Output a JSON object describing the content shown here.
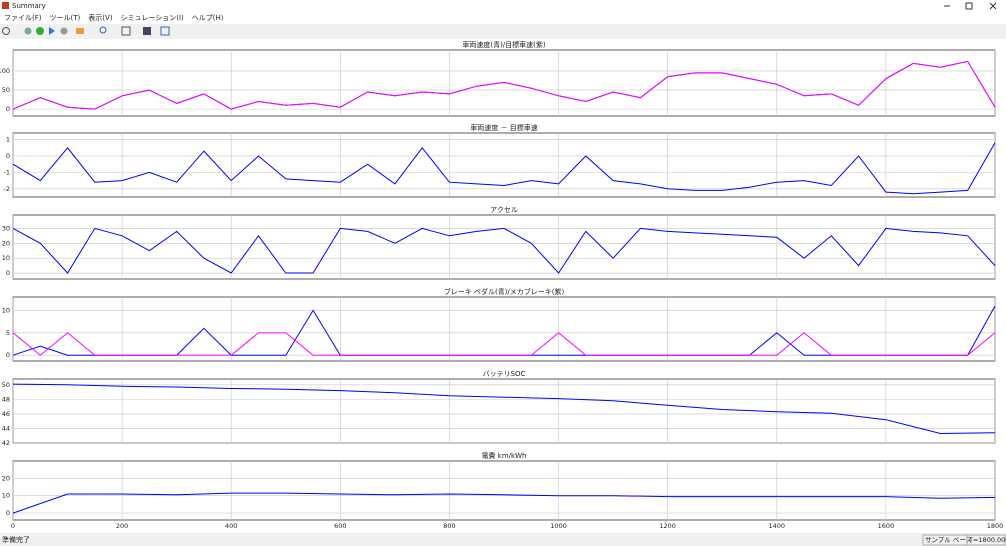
{
  "window": {
    "title": "Summary",
    "menu": [
      "ファイル(F)",
      "ツール(T)",
      "表示(V)",
      "シミュレーション(I)",
      "ヘルプ(H)"
    ],
    "status": {
      "left": "準備完了",
      "mode": "サンプル ベース",
      "time": "T=1800.000"
    }
  },
  "chart_data": [
    {
      "type": "line",
      "title": "車両速度(青)/目標車速(紫)",
      "x": [
        0,
        50,
        100,
        150,
        200,
        250,
        300,
        350,
        400,
        450,
        500,
        550,
        600,
        650,
        700,
        750,
        800,
        850,
        900,
        950,
        1000,
        1050,
        1100,
        1150,
        1200,
        1250,
        1300,
        1350,
        1400,
        1450,
        1500,
        1550,
        1600,
        1650,
        1700,
        1750,
        1800
      ],
      "series": [
        {
          "color": "#0000ff",
          "values": [
            0,
            30,
            5,
            0,
            35,
            50,
            15,
            40,
            0,
            20,
            10,
            15,
            5,
            45,
            35,
            45,
            40,
            60,
            70,
            55,
            35,
            20,
            45,
            30,
            85,
            95,
            95,
            80,
            65,
            35,
            40,
            10,
            80,
            120,
            110,
            125,
            5
          ]
        },
        {
          "color": "#ff00ff",
          "values": [
            0,
            30,
            5,
            0,
            35,
            50,
            15,
            40,
            0,
            20,
            10,
            15,
            5,
            45,
            35,
            45,
            40,
            60,
            70,
            55,
            35,
            20,
            45,
            30,
            85,
            95,
            95,
            80,
            65,
            35,
            40,
            10,
            80,
            120,
            110,
            125,
            5
          ]
        }
      ],
      "xlim": [
        0,
        1800
      ],
      "xticks": [
        0,
        200,
        400,
        600,
        800,
        1000,
        1200,
        1400,
        1600,
        1800
      ],
      "ylim": [
        -18,
        155
      ],
      "yticks": [
        0,
        50,
        100
      ],
      "grid": true
    },
    {
      "type": "line",
      "title": "車両速度 － 目標車速",
      "x": [
        0,
        50,
        100,
        150,
        200,
        250,
        300,
        350,
        400,
        450,
        500,
        550,
        600,
        650,
        700,
        750,
        800,
        850,
        900,
        950,
        1000,
        1050,
        1100,
        1150,
        1200,
        1250,
        1300,
        1350,
        1400,
        1450,
        1500,
        1550,
        1600,
        1650,
        1700,
        1750,
        1800
      ],
      "series": [
        {
          "color": "#0000ff",
          "values": [
            -0.5,
            -1.5,
            0.5,
            -1.6,
            -1.5,
            -1,
            -1.6,
            0.3,
            -1.5,
            0,
            -1.4,
            -1.5,
            -1.6,
            -0.5,
            -1.7,
            0.5,
            -1.6,
            -1.7,
            -1.8,
            -1.5,
            -1.7,
            0,
            -1.5,
            -1.7,
            -2,
            -2.1,
            -2.1,
            -1.9,
            -1.6,
            -1.5,
            -1.8,
            0,
            -2.2,
            -2.3,
            -2.2,
            -2.1,
            0.8
          ]
        }
      ],
      "xlim": [
        0,
        1800
      ],
      "xticks": [
        0,
        200,
        400,
        600,
        800,
        1000,
        1200,
        1400,
        1600,
        1800
      ],
      "ylim": [
        -2.5,
        1.4
      ],
      "yticks": [
        -2,
        -1,
        0,
        1
      ],
      "grid": true
    },
    {
      "type": "line",
      "title": "アクセル",
      "x": [
        0,
        50,
        100,
        150,
        200,
        250,
        300,
        350,
        400,
        450,
        500,
        550,
        600,
        650,
        700,
        750,
        800,
        850,
        900,
        950,
        1000,
        1050,
        1100,
        1150,
        1200,
        1250,
        1300,
        1350,
        1400,
        1450,
        1500,
        1550,
        1600,
        1650,
        1700,
        1750,
        1800
      ],
      "series": [
        {
          "color": "#0000ff",
          "values": [
            30,
            20,
            0,
            30,
            25,
            15,
            28,
            10,
            0,
            25,
            0,
            0,
            30,
            28,
            20,
            30,
            25,
            28,
            30,
            20,
            0,
            28,
            10,
            30,
            28,
            27,
            26,
            25,
            24,
            10,
            25,
            5,
            30,
            28,
            27,
            25,
            5
          ]
        }
      ],
      "xlim": [
        0,
        1800
      ],
      "xticks": [
        0,
        200,
        400,
        600,
        800,
        1000,
        1200,
        1400,
        1600,
        1800
      ],
      "ylim": [
        -4,
        39
      ],
      "yticks": [
        0,
        10,
        20,
        30
      ],
      "grid": true
    },
    {
      "type": "line",
      "title": "ブレーキ ペダル(青)/メカブレーキ(紫)",
      "x": [
        0,
        50,
        100,
        150,
        200,
        250,
        300,
        350,
        400,
        450,
        500,
        550,
        600,
        650,
        700,
        750,
        800,
        850,
        900,
        950,
        1000,
        1050,
        1100,
        1150,
        1200,
        1250,
        1300,
        1350,
        1400,
        1450,
        1500,
        1550,
        1600,
        1650,
        1700,
        1750,
        1800
      ],
      "series": [
        {
          "color": "#0000ff",
          "values": [
            0,
            2,
            0,
            0,
            0,
            0,
            0,
            6,
            0,
            0,
            0,
            10,
            0,
            0,
            0,
            0,
            0,
            0,
            0,
            0,
            0,
            0,
            0,
            0,
            0,
            0,
            0,
            0,
            5,
            0,
            0,
            0,
            0,
            0,
            0,
            0,
            11
          ]
        },
        {
          "color": "#ff00ff",
          "values": [
            5,
            0,
            5,
            0,
            0,
            0,
            0,
            0,
            0,
            5,
            5,
            0,
            0,
            0,
            0,
            0,
            0,
            0,
            0,
            0,
            5,
            0,
            0,
            0,
            0,
            0,
            0,
            0,
            0,
            5,
            0,
            0,
            0,
            0,
            0,
            0,
            5
          ]
        }
      ],
      "xlim": [
        0,
        1800
      ],
      "xticks": [
        0,
        200,
        400,
        600,
        800,
        1000,
        1200,
        1400,
        1600,
        1800
      ],
      "ylim": [
        -1.3,
        13
      ],
      "yticks": [
        0,
        5,
        10
      ],
      "grid": true
    },
    {
      "type": "line",
      "title": "バッテリSOC",
      "x": [
        0,
        100,
        200,
        300,
        400,
        500,
        600,
        700,
        800,
        900,
        1000,
        1100,
        1200,
        1300,
        1400,
        1500,
        1600,
        1700,
        1800
      ],
      "series": [
        {
          "color": "#0000ff",
          "values": [
            50.1,
            50,
            49.8,
            49.7,
            49.5,
            49.4,
            49.2,
            48.9,
            48.5,
            48.3,
            48.1,
            47.8,
            47.2,
            46.6,
            46.3,
            46.1,
            45.2,
            43.3,
            43.4
          ]
        }
      ],
      "xlim": [
        0,
        1800
      ],
      "xticks": [
        0,
        200,
        400,
        600,
        800,
        1000,
        1200,
        1400,
        1600,
        1800
      ],
      "ylim": [
        42,
        50.8
      ],
      "yticks": [
        42,
        44,
        46,
        48,
        50
      ],
      "grid": true
    },
    {
      "type": "line",
      "title": "電費  km/kWh",
      "x": [
        0,
        100,
        200,
        300,
        400,
        500,
        600,
        700,
        800,
        900,
        1000,
        1100,
        1200,
        1300,
        1400,
        1500,
        1600,
        1700,
        1800
      ],
      "series": [
        {
          "color": "#0000ff",
          "values": [
            0,
            11,
            11,
            10.5,
            11.5,
            11.5,
            11,
            10.5,
            11,
            10.5,
            10,
            10,
            9.5,
            9.5,
            9.5,
            9.5,
            9.5,
            8.5,
            9
          ]
        }
      ],
      "xlim": [
        0,
        1800
      ],
      "xticks": [
        0,
        200,
        400,
        600,
        800,
        1000,
        1200,
        1400,
        1600,
        1800
      ],
      "ylim": [
        -4,
        30
      ],
      "yticks": [
        0,
        10,
        20
      ],
      "grid": true
    }
  ]
}
